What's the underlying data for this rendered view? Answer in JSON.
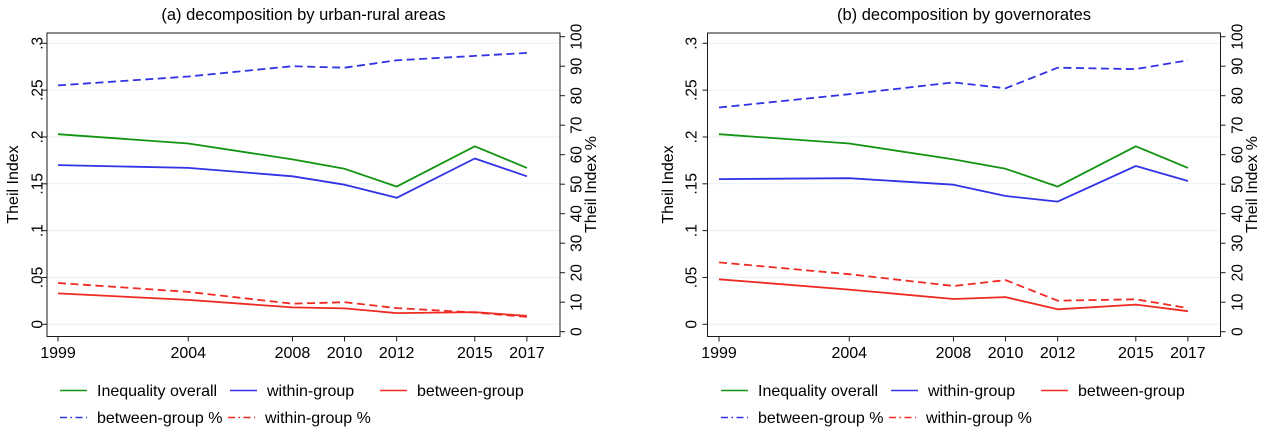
{
  "figure": {
    "background": "#ffffff",
    "axis_color": "#1a1a1a",
    "grid_color": "#e6f1f5",
    "grid": "on",
    "legend_position": "bottom-left, two rows"
  },
  "chart_data": [
    {
      "type": "line",
      "title": "(a) decomposition by urban-rural areas",
      "xlabel": "",
      "ylabel_left": "Theil Index",
      "ylabel_right": "Theil Index %",
      "x": [
        1999,
        2004,
        2008,
        2010,
        2012,
        2015,
        2017
      ],
      "x_tick_labels": [
        "1999",
        "2004",
        "2008",
        "2010",
        "2012",
        "2015",
        "2017"
      ],
      "ylim_left": [
        0,
        0.3
      ],
      "ylim_right": [
        0,
        100
      ],
      "y_left_ticks": [
        0,
        0.05,
        0.1,
        0.15,
        0.2,
        0.25,
        0.3
      ],
      "y_left_tick_labels": [
        "0",
        ".05",
        ".1",
        ".15",
        ".2",
        ".25",
        ".3"
      ],
      "y_right_ticks": [
        0,
        10,
        20,
        30,
        40,
        50,
        60,
        70,
        80,
        90,
        100
      ],
      "y_right_tick_labels": [
        "0",
        "10",
        "20",
        "30",
        "40",
        "50",
        "60",
        "70",
        "80",
        "90",
        "100"
      ],
      "series": [
        {
          "name": "Inequality overall",
          "axis": "left",
          "style": "solid",
          "color": "#129412",
          "values": [
            0.203,
            0.193,
            0.176,
            0.166,
            0.147,
            0.19,
            0.167
          ]
        },
        {
          "name": "within-group",
          "axis": "left",
          "style": "solid",
          "color": "#3232e6",
          "values": [
            0.17,
            0.167,
            0.158,
            0.149,
            0.135,
            0.177,
            0.158
          ]
        },
        {
          "name": "between-group",
          "axis": "left",
          "style": "solid",
          "color": "#ee2a22",
          "values": [
            0.033,
            0.026,
            0.018,
            0.017,
            0.012,
            0.013,
            0.009
          ]
        },
        {
          "name": "between-group %",
          "axis": "right",
          "style": "dashed",
          "color": "#3232e6",
          "values": [
            83.5,
            86.5,
            90,
            89.5,
            92,
            93.5,
            94.5
          ]
        },
        {
          "name": "within-group %",
          "axis": "right",
          "style": "dashed",
          "color": "#ee2a22",
          "values": [
            16.5,
            13.5,
            9.5,
            10,
            8,
            6.5,
            5
          ]
        }
      ],
      "legend_rows": [
        [
          "Inequality overall",
          "within-group",
          "between-group"
        ],
        [
          "between-group %",
          "within-group %"
        ]
      ]
    },
    {
      "type": "line",
      "title": "(b) decomposition by governorates",
      "xlabel": "",
      "ylabel_left": "Theil Index",
      "ylabel_right": "Theil Index %",
      "x": [
        1999,
        2004,
        2008,
        2010,
        2012,
        2015,
        2017
      ],
      "x_tick_labels": [
        "1999",
        "2004",
        "2008",
        "2010",
        "2012",
        "2015",
        "2017"
      ],
      "ylim_left": [
        0,
        0.3
      ],
      "ylim_right": [
        0,
        100
      ],
      "y_left_ticks": [
        0,
        0.05,
        0.1,
        0.15,
        0.2,
        0.25,
        0.3
      ],
      "y_left_tick_labels": [
        "0",
        ".05",
        ".1",
        ".15",
        ".2",
        ".25",
        ".3"
      ],
      "y_right_ticks": [
        0,
        10,
        20,
        30,
        40,
        50,
        60,
        70,
        80,
        90,
        100
      ],
      "y_right_tick_labels": [
        "0",
        "10",
        "20",
        "30",
        "40",
        "50",
        "60",
        "70",
        "80",
        "90",
        "100"
      ],
      "series": [
        {
          "name": "Inequality overall",
          "axis": "left",
          "style": "solid",
          "color": "#129412",
          "values": [
            0.203,
            0.193,
            0.176,
            0.166,
            0.147,
            0.19,
            0.167
          ]
        },
        {
          "name": "within-group",
          "axis": "left",
          "style": "solid",
          "color": "#3232e6",
          "values": [
            0.155,
            0.156,
            0.149,
            0.137,
            0.131,
            0.169,
            0.153
          ]
        },
        {
          "name": "between-group",
          "axis": "left",
          "style": "solid",
          "color": "#ee2a22",
          "values": [
            0.048,
            0.037,
            0.027,
            0.029,
            0.016,
            0.021,
            0.014
          ]
        },
        {
          "name": "between-group %",
          "axis": "right",
          "style": "dashed",
          "color": "#3232e6",
          "values": [
            76,
            80.5,
            84.5,
            82.5,
            89.5,
            89,
            92
          ]
        },
        {
          "name": "within-group %",
          "axis": "right",
          "style": "dashed",
          "color": "#ee2a22",
          "values": [
            23.5,
            19.5,
            15.5,
            17.5,
            10.5,
            11,
            8
          ]
        }
      ],
      "legend_rows": [
        [
          "Inequality overall",
          "within-group",
          "between-group"
        ],
        [
          "between-group %",
          "within-group %"
        ]
      ]
    }
  ]
}
